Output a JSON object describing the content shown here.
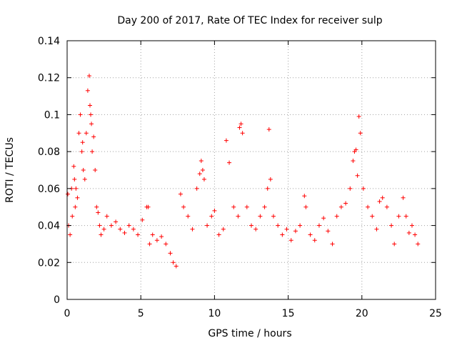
{
  "chart_data": {
    "type": "scatter",
    "title": "Day 200 of 2017, Rate Of TEC Index for receiver sulp",
    "xlabel": "GPS time / hours",
    "ylabel": "ROTI / TECUs",
    "xlim": [
      0,
      25
    ],
    "ylim": [
      0,
      0.14
    ],
    "xticks": [
      "0",
      "5",
      "10",
      "15",
      "20",
      "25"
    ],
    "yticks": [
      "0",
      "0.02",
      "0.04",
      "0.06",
      "0.08",
      "0.1",
      "0.12",
      "0.14"
    ],
    "grid": true,
    "marker": "+",
    "color": "#ff0000",
    "series": [
      {
        "x": [
          0.05,
          0.1,
          0.2,
          0.3,
          0.35,
          0.45,
          0.5,
          0.55,
          0.6,
          0.7,
          0.8,
          0.9,
          1.0,
          1.05,
          1.1,
          1.2,
          1.3,
          1.4,
          1.5,
          1.55,
          1.6,
          1.65,
          1.7,
          1.8,
          1.9,
          2.0,
          2.1,
          2.2,
          2.3,
          2.5,
          2.7,
          3.0,
          3.3,
          3.6,
          3.9,
          4.2,
          4.5,
          4.8,
          5.1,
          5.4,
          5.5,
          5.6,
          5.8,
          6.1,
          6.4,
          6.7,
          7.0,
          7.2,
          7.4,
          7.7,
          7.9,
          8.2,
          8.5,
          8.8,
          9.0,
          9.1,
          9.2,
          9.3,
          9.5,
          9.8,
          10.0,
          10.3,
          10.6,
          10.8,
          11.0,
          11.3,
          11.6,
          11.7,
          11.8,
          11.9,
          12.2,
          12.5,
          12.8,
          13.1,
          13.4,
          13.6,
          13.7,
          13.8,
          14.0,
          14.3,
          14.6,
          14.9,
          15.2,
          15.5,
          15.8,
          16.1,
          16.2,
          16.5,
          16.8,
          17.1,
          17.4,
          17.7,
          18.0,
          18.3,
          18.6,
          18.9,
          19.2,
          19.4,
          19.5,
          19.6,
          19.7,
          19.8,
          19.9,
          20.1,
          20.4,
          20.7,
          21.0,
          21.2,
          21.4,
          21.7,
          22.0,
          22.2,
          22.5,
          22.8,
          23.0,
          23.2,
          23.4,
          23.6,
          23.8
        ],
        "y": [
          0.057,
          0.04,
          0.035,
          0.06,
          0.045,
          0.072,
          0.065,
          0.05,
          0.06,
          0.055,
          0.09,
          0.1,
          0.08,
          0.085,
          0.07,
          0.065,
          0.09,
          0.113,
          0.121,
          0.105,
          0.1,
          0.095,
          0.08,
          0.088,
          0.07,
          0.05,
          0.047,
          0.04,
          0.035,
          0.038,
          0.045,
          0.04,
          0.042,
          0.038,
          0.036,
          0.04,
          0.038,
          0.035,
          0.043,
          0.05,
          0.05,
          0.03,
          0.035,
          0.032,
          0.034,
          0.03,
          0.025,
          0.02,
          0.018,
          0.057,
          0.05,
          0.045,
          0.038,
          0.06,
          0.068,
          0.075,
          0.07,
          0.065,
          0.04,
          0.045,
          0.048,
          0.035,
          0.038,
          0.086,
          0.074,
          0.05,
          0.045,
          0.093,
          0.095,
          0.09,
          0.05,
          0.04,
          0.038,
          0.045,
          0.05,
          0.06,
          0.092,
          0.065,
          0.045,
          0.04,
          0.035,
          0.038,
          0.032,
          0.037,
          0.04,
          0.056,
          0.05,
          0.035,
          0.032,
          0.04,
          0.044,
          0.037,
          0.03,
          0.045,
          0.05,
          0.052,
          0.06,
          0.075,
          0.08,
          0.081,
          0.067,
          0.099,
          0.09,
          0.06,
          0.05,
          0.045,
          0.038,
          0.053,
          0.055,
          0.05,
          0.04,
          0.03,
          0.045,
          0.055,
          0.045,
          0.036,
          0.04,
          0.035,
          0.03
        ]
      }
    ]
  }
}
